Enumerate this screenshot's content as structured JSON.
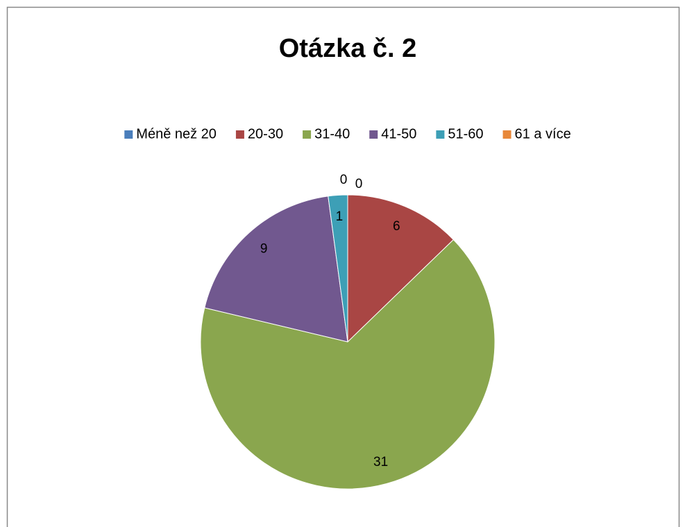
{
  "chart_data": {
    "type": "pie",
    "title": "Otázka č. 2",
    "categories": [
      "Méně než 20",
      "20-30",
      "31-40",
      "41-50",
      "51-60",
      "61 a více"
    ],
    "values": [
      0,
      6,
      31,
      9,
      1,
      0
    ],
    "colors": [
      "#4a7ebb",
      "#a94644",
      "#8aa64e",
      "#71588f",
      "#3d9fb6",
      "#e8883a"
    ],
    "legend": "top"
  }
}
